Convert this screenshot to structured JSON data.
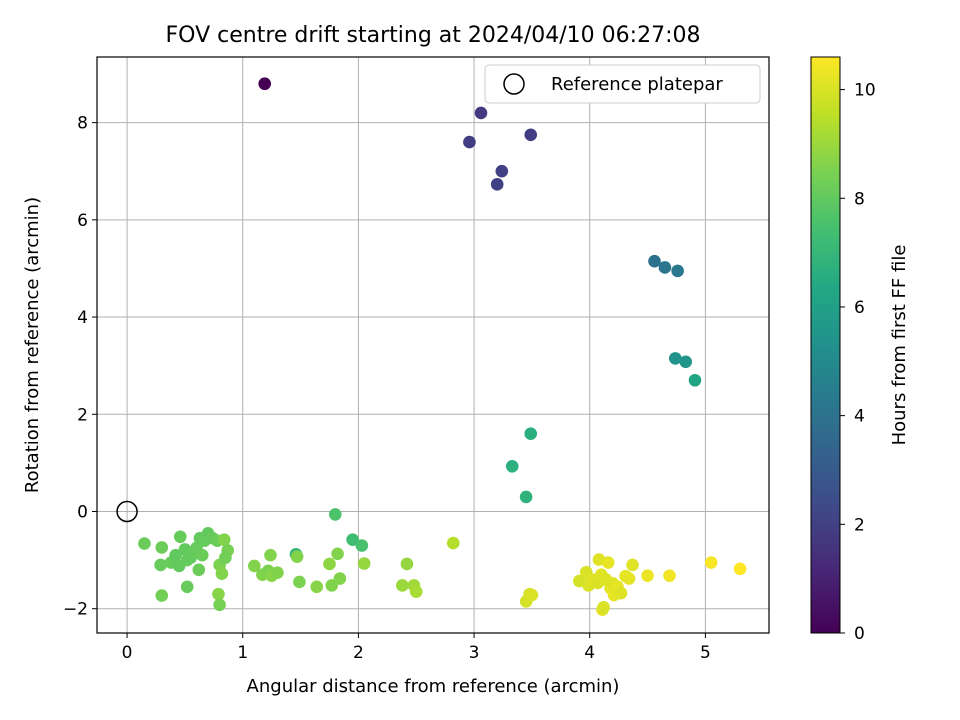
{
  "chart_data": {
    "type": "scatter",
    "title": "FOV centre drift starting at 2024/04/10 06:27:08",
    "xlabel": "Angular distance from reference (arcmin)",
    "ylabel": "Rotation from reference (arcmin)",
    "xlim": [
      -0.26,
      5.55
    ],
    "ylim": [
      -2.5,
      9.35
    ],
    "xticks": [
      0,
      1,
      2,
      3,
      4,
      5
    ],
    "yticks": [
      -2,
      0,
      2,
      4,
      6,
      8
    ],
    "grid": true,
    "legend": {
      "position": "top-right",
      "entries": [
        "Reference platepar"
      ]
    },
    "reference_point": {
      "x": 0,
      "y": 0
    },
    "colorbar": {
      "label": "Hours from first FF file",
      "colormap": "viridis",
      "range": [
        0,
        10.6
      ],
      "ticks": [
        0,
        2,
        4,
        6,
        8,
        10
      ]
    },
    "series": [
      {
        "points": [
          [
            1.19,
            8.8,
            0.0
          ],
          [
            3.06,
            8.2,
            1.8
          ],
          [
            2.96,
            7.6,
            1.9
          ],
          [
            3.49,
            7.75,
            1.9
          ],
          [
            3.24,
            7.0,
            2.0
          ],
          [
            3.2,
            6.73,
            2.0
          ],
          [
            4.56,
            5.15,
            4.0
          ],
          [
            4.65,
            5.02,
            4.1
          ],
          [
            4.76,
            4.95,
            4.2
          ],
          [
            4.74,
            3.15,
            5.4
          ],
          [
            4.83,
            3.08,
            5.5
          ],
          [
            4.91,
            2.7,
            6.2
          ],
          [
            3.49,
            1.6,
            6.6
          ],
          [
            3.33,
            0.93,
            6.7
          ],
          [
            3.45,
            0.3,
            6.8
          ],
          [
            1.8,
            -0.06,
            7.6
          ],
          [
            1.95,
            -0.58,
            7.3
          ],
          [
            2.03,
            -0.7,
            7.5
          ],
          [
            1.46,
            -0.88,
            7.0
          ],
          [
            0.15,
            -0.66,
            8.2
          ],
          [
            0.3,
            -0.74,
            8.2
          ],
          [
            0.29,
            -1.1,
            8.1
          ],
          [
            0.38,
            -1.05,
            8.1
          ],
          [
            0.42,
            -0.9,
            8.0
          ],
          [
            0.46,
            -0.52,
            8.1
          ],
          [
            0.45,
            -1.12,
            8.0
          ],
          [
            0.5,
            -0.78,
            8.0
          ],
          [
            0.52,
            -1.0,
            8.1
          ],
          [
            0.55,
            -0.95,
            8.0
          ],
          [
            0.58,
            -0.85,
            8.1
          ],
          [
            0.6,
            -0.75,
            8.1
          ],
          [
            0.62,
            -1.2,
            8.2
          ],
          [
            0.63,
            -0.55,
            8.0
          ],
          [
            0.65,
            -0.9,
            8.2
          ],
          [
            0.67,
            -0.6,
            8.1
          ],
          [
            0.7,
            -0.45,
            8.0
          ],
          [
            0.74,
            -0.55,
            8.1
          ],
          [
            0.78,
            -0.6,
            8.2
          ],
          [
            0.8,
            -1.1,
            8.5
          ],
          [
            0.82,
            -1.28,
            8.6
          ],
          [
            0.84,
            -0.58,
            8.6
          ],
          [
            0.87,
            -0.8,
            8.4
          ],
          [
            0.85,
            -0.95,
            8.3
          ],
          [
            0.79,
            -1.7,
            8.7
          ],
          [
            0.8,
            -1.92,
            8.4
          ],
          [
            0.3,
            -1.73,
            8.3
          ],
          [
            0.52,
            -1.55,
            8.1
          ],
          [
            1.1,
            -1.12,
            8.6
          ],
          [
            1.17,
            -1.3,
            8.6
          ],
          [
            1.22,
            -1.22,
            8.5
          ],
          [
            1.24,
            -0.9,
            8.6
          ],
          [
            1.25,
            -1.32,
            8.7
          ],
          [
            1.3,
            -1.26,
            8.6
          ],
          [
            1.47,
            -0.93,
            8.6
          ],
          [
            1.49,
            -1.45,
            8.5
          ],
          [
            1.64,
            -1.55,
            8.7
          ],
          [
            1.75,
            -1.08,
            8.8
          ],
          [
            1.77,
            -1.52,
            8.6
          ],
          [
            1.82,
            -0.87,
            8.6
          ],
          [
            1.84,
            -1.38,
            8.6
          ],
          [
            2.05,
            -1.07,
            8.9
          ],
          [
            2.38,
            -1.52,
            9.0
          ],
          [
            2.42,
            -1.08,
            8.9
          ],
          [
            2.48,
            -1.52,
            9.1
          ],
          [
            2.5,
            -1.65,
            9.2
          ],
          [
            2.82,
            -0.65,
            9.4
          ],
          [
            3.45,
            -1.85,
            9.9
          ],
          [
            3.48,
            -1.7,
            9.9
          ],
          [
            3.5,
            -1.72,
            10.0
          ],
          [
            3.91,
            -1.43,
            9.9
          ],
          [
            3.97,
            -1.25,
            10.0
          ],
          [
            3.99,
            -1.52,
            10.0
          ],
          [
            4.02,
            -1.4,
            10.1
          ],
          [
            4.07,
            -1.47,
            10.0
          ],
          [
            4.08,
            -0.99,
            10.1
          ],
          [
            4.1,
            -1.3,
            10.1
          ],
          [
            4.11,
            -2.02,
            10.2
          ],
          [
            4.12,
            -1.97,
            10.0
          ],
          [
            4.14,
            -1.4,
            10.1
          ],
          [
            4.16,
            -1.05,
            10.2
          ],
          [
            4.18,
            -1.58,
            10.2
          ],
          [
            4.2,
            -1.48,
            10.1
          ],
          [
            4.21,
            -1.72,
            10.2
          ],
          [
            4.24,
            -1.55,
            10.2
          ],
          [
            4.27,
            -1.68,
            10.1
          ],
          [
            4.31,
            -1.33,
            10.2
          ],
          [
            4.34,
            -1.38,
            10.2
          ],
          [
            4.37,
            -1.1,
            10.1
          ],
          [
            4.5,
            -1.32,
            10.3
          ],
          [
            4.69,
            -1.32,
            10.4
          ],
          [
            5.05,
            -1.05,
            10.5
          ],
          [
            5.3,
            -1.18,
            10.6
          ]
        ]
      }
    ]
  }
}
